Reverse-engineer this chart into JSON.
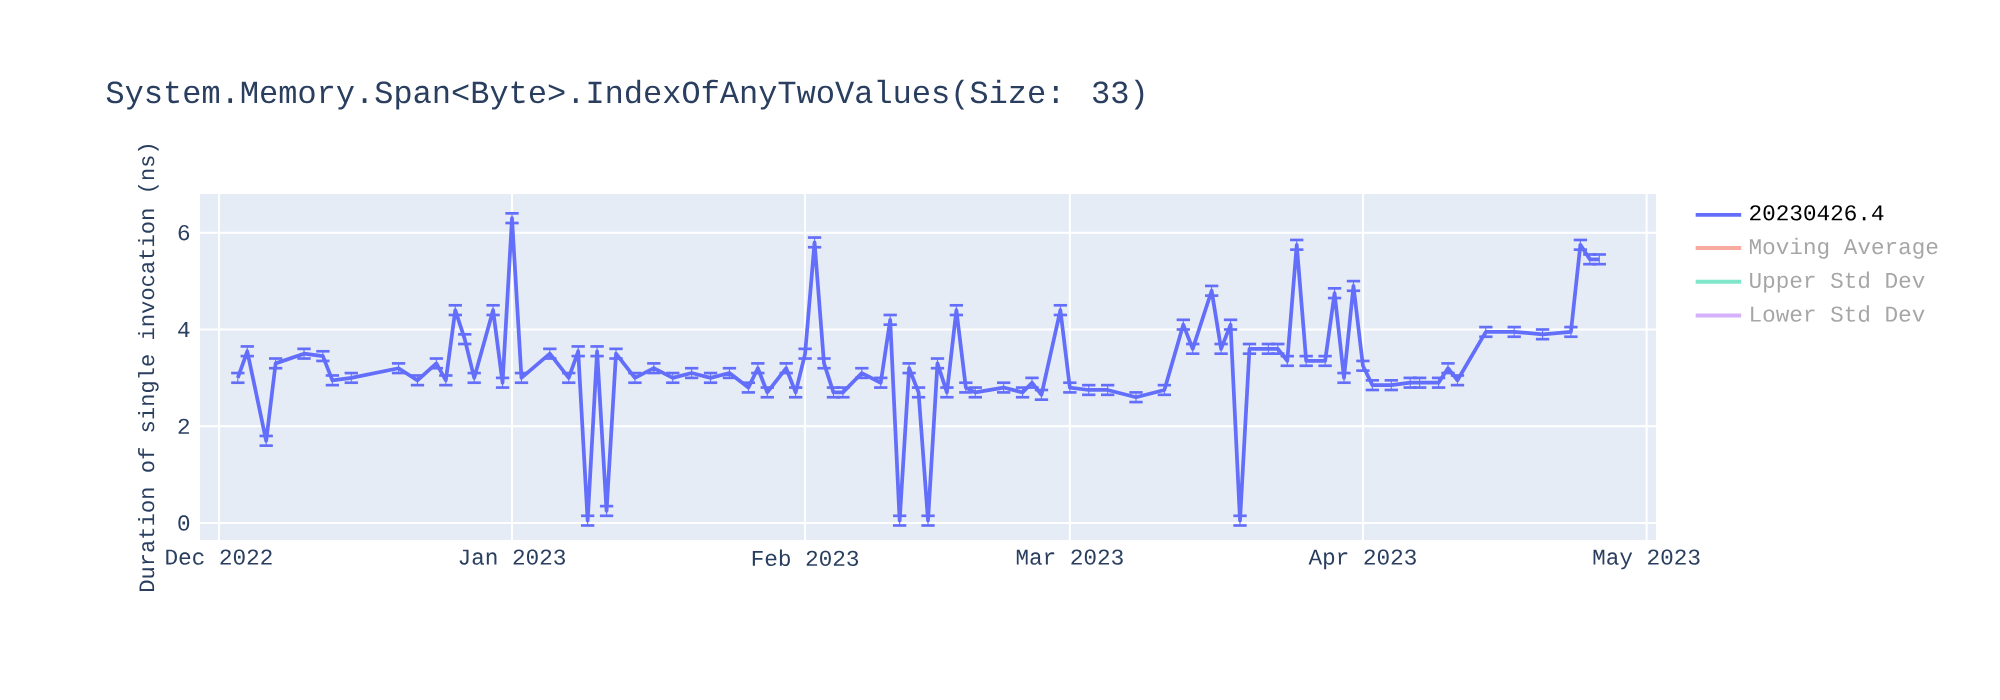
{
  "chart_data": {
    "type": "line",
    "title": "System.Memory.Span<Byte>.IndexOfAnyTwoValues(Size: 33)",
    "ylabel": "Duration of single invocation (ns)",
    "x": [
      "2022-12-03",
      "2022-12-04",
      "2022-12-06",
      "2022-12-07",
      "2022-12-10",
      "2022-12-12",
      "2022-12-13",
      "2022-12-15",
      "2022-12-20",
      "2022-12-22",
      "2022-12-24",
      "2022-12-25",
      "2022-12-26",
      "2022-12-27",
      "2022-12-28",
      "2022-12-30",
      "2022-12-31",
      "2023-01-01",
      "2023-01-02",
      "2023-01-05",
      "2023-01-07",
      "2023-01-08",
      "2023-01-09",
      "2023-01-10",
      "2023-01-11",
      "2023-01-12",
      "2023-01-14",
      "2023-01-16",
      "2023-01-18",
      "2023-01-20",
      "2023-01-22",
      "2023-01-24",
      "2023-01-26",
      "2023-01-27",
      "2023-01-28",
      "2023-01-30",
      "2023-01-31",
      "2023-02-01",
      "2023-02-02",
      "2023-02-03",
      "2023-02-04",
      "2023-02-05",
      "2023-02-07",
      "2023-02-09",
      "2023-02-10",
      "2023-02-11",
      "2023-02-12",
      "2023-02-13",
      "2023-02-14",
      "2023-02-15",
      "2023-02-16",
      "2023-02-17",
      "2023-02-18",
      "2023-02-19",
      "2023-02-22",
      "2023-02-24",
      "2023-02-25",
      "2023-02-26",
      "2023-02-28",
      "2023-03-01",
      "2023-03-03",
      "2023-03-05",
      "2023-03-08",
      "2023-03-11",
      "2023-03-13",
      "2023-03-14",
      "2023-03-16",
      "2023-03-17",
      "2023-03-18",
      "2023-03-19",
      "2023-03-20",
      "2023-03-22",
      "2023-03-23",
      "2023-03-24",
      "2023-03-25",
      "2023-03-26",
      "2023-03-28",
      "2023-03-29",
      "2023-03-30",
      "2023-03-31",
      "2023-04-01",
      "2023-04-02",
      "2023-04-04",
      "2023-04-06",
      "2023-04-07",
      "2023-04-09",
      "2023-04-10",
      "2023-04-11",
      "2023-04-14",
      "2023-04-17",
      "2023-04-20",
      "2023-04-23",
      "2023-04-24",
      "2023-04-25",
      "2023-04-26"
    ],
    "series": [
      {
        "name": "20230426.4",
        "color": "#636efa",
        "values": [
          3.0,
          3.55,
          1.7,
          3.3,
          3.5,
          3.45,
          2.95,
          3.0,
          3.2,
          2.95,
          3.3,
          2.95,
          4.4,
          3.8,
          3.0,
          4.4,
          2.9,
          6.3,
          3.0,
          3.5,
          3.0,
          3.55,
          0.05,
          3.55,
          0.25,
          3.5,
          3.0,
          3.2,
          3.0,
          3.1,
          3.0,
          3.1,
          2.8,
          3.2,
          2.7,
          3.2,
          2.7,
          3.5,
          5.8,
          3.3,
          2.7,
          2.7,
          3.1,
          2.9,
          4.2,
          0.05,
          3.2,
          2.7,
          0.05,
          3.3,
          2.7,
          4.4,
          2.8,
          2.7,
          2.8,
          2.7,
          2.9,
          2.65,
          4.4,
          2.8,
          2.75,
          2.75,
          2.6,
          2.75,
          4.1,
          3.6,
          4.8,
          3.6,
          4.1,
          0.05,
          3.6,
          3.6,
          3.6,
          3.35,
          5.75,
          3.35,
          3.35,
          4.75,
          3.0,
          4.9,
          3.25,
          2.85,
          2.85,
          2.9,
          2.9,
          2.9,
          3.2,
          2.95,
          3.95,
          3.95,
          3.9,
          3.95,
          5.75,
          5.45,
          5.45
        ],
        "errors": [
          0.1,
          0.1,
          0.1,
          0.1,
          0.1,
          0.1,
          0.1,
          0.1,
          0.1,
          0.1,
          0.1,
          0.1,
          0.1,
          0.1,
          0.1,
          0.1,
          0.1,
          0.1,
          0.1,
          0.1,
          0.1,
          0.1,
          0.1,
          0.1,
          0.1,
          0.1,
          0.1,
          0.1,
          0.1,
          0.1,
          0.1,
          0.1,
          0.1,
          0.1,
          0.1,
          0.1,
          0.1,
          0.1,
          0.1,
          0.1,
          0.1,
          0.1,
          0.1,
          0.1,
          0.1,
          0.1,
          0.1,
          0.1,
          0.1,
          0.1,
          0.1,
          0.1,
          0.1,
          0.1,
          0.1,
          0.1,
          0.1,
          0.1,
          0.1,
          0.1,
          0.1,
          0.1,
          0.1,
          0.1,
          0.1,
          0.1,
          0.1,
          0.1,
          0.1,
          0.1,
          0.1,
          0.1,
          0.1,
          0.1,
          0.1,
          0.1,
          0.1,
          0.1,
          0.1,
          0.1,
          0.1,
          0.1,
          0.1,
          0.1,
          0.1,
          0.1,
          0.1,
          0.1,
          0.1,
          0.1,
          0.1,
          0.1,
          0.1,
          0.1,
          0.1
        ]
      },
      {
        "name": "Moving Average",
        "color": "#f7aa9d",
        "values": [
          null,
          null,
          null,
          null,
          null,
          null,
          null,
          null,
          null,
          null,
          null,
          null,
          null,
          null,
          null,
          null,
          null,
          null,
          null,
          null,
          null,
          null,
          null,
          null,
          null,
          null,
          null,
          null,
          null,
          null,
          null,
          null,
          null,
          null,
          null,
          null,
          null,
          null,
          null,
          null,
          null,
          null,
          null,
          null,
          null,
          null,
          null,
          null,
          null,
          null,
          null,
          null,
          null,
          null,
          null,
          null,
          null,
          null,
          null,
          null,
          null,
          null,
          null,
          null,
          null,
          null,
          null,
          null,
          null,
          null,
          null,
          null,
          null,
          null,
          null,
          null,
          null,
          null,
          null,
          null,
          null,
          null,
          null,
          null,
          null,
          null,
          null,
          null,
          null,
          null,
          null,
          null,
          null,
          null,
          null
        ]
      },
      {
        "name": "Upper Std Dev",
        "color": "#80e6ca",
        "values": [
          null,
          null,
          null,
          null,
          null,
          null,
          null,
          null,
          null,
          null,
          null,
          null,
          null,
          null,
          null,
          null,
          null,
          null,
          null,
          null,
          null,
          null,
          null,
          null,
          null,
          null,
          null,
          null,
          null,
          null,
          null,
          null,
          null,
          null,
          null,
          null,
          null,
          null,
          null,
          null,
          null,
          null,
          null,
          null,
          null,
          null,
          null,
          null,
          null,
          null,
          null,
          null,
          null,
          null,
          null,
          null,
          null,
          null,
          null,
          null,
          null,
          null,
          null,
          null,
          null,
          null,
          null,
          null,
          null,
          null,
          null,
          null,
          null,
          null,
          null,
          null,
          null,
          null,
          null,
          null,
          null,
          null,
          null,
          null,
          null,
          null,
          null,
          null,
          null,
          null,
          null,
          null,
          null,
          null,
          null
        ]
      },
      {
        "name": "Lower Std Dev",
        "color": "#d5b1fc",
        "values": [
          null,
          null,
          null,
          null,
          null,
          null,
          null,
          null,
          null,
          null,
          null,
          null,
          null,
          null,
          null,
          null,
          null,
          null,
          null,
          null,
          null,
          null,
          null,
          null,
          null,
          null,
          null,
          null,
          null,
          null,
          null,
          null,
          null,
          null,
          null,
          null,
          null,
          null,
          null,
          null,
          null,
          null,
          null,
          null,
          null,
          null,
          null,
          null,
          null,
          null,
          null,
          null,
          null,
          null,
          null,
          null,
          null,
          null,
          null,
          null,
          null,
          null,
          null,
          null,
          null,
          null,
          null,
          null,
          null,
          null,
          null,
          null,
          null,
          null,
          null,
          null,
          null,
          null,
          null,
          null,
          null,
          null,
          null,
          null,
          null,
          null,
          null,
          null,
          null,
          null,
          null,
          null,
          null,
          null,
          null
        ]
      }
    ],
    "xlim": [
      "2022-11-29",
      "2023-05-02"
    ],
    "xticks": [
      {
        "value": "2022-12-01",
        "label": "Dec 2022"
      },
      {
        "value": "2023-01-01",
        "label": "Jan 2023"
      },
      {
        "value": "2023-02-01",
        "label": "Feb 2023"
      },
      {
        "value": "2023-03-01",
        "label": "Mar 2023"
      },
      {
        "value": "2023-04-01",
        "label": "Apr 2023"
      },
      {
        "value": "2023-05-01",
        "label": "May 2023"
      }
    ],
    "ylim": [
      -0.35,
      6.8
    ],
    "yticks": [
      0,
      2,
      4,
      6
    ],
    "grid": true,
    "legend": "top right",
    "marker": "none",
    "line_style": "solid"
  }
}
